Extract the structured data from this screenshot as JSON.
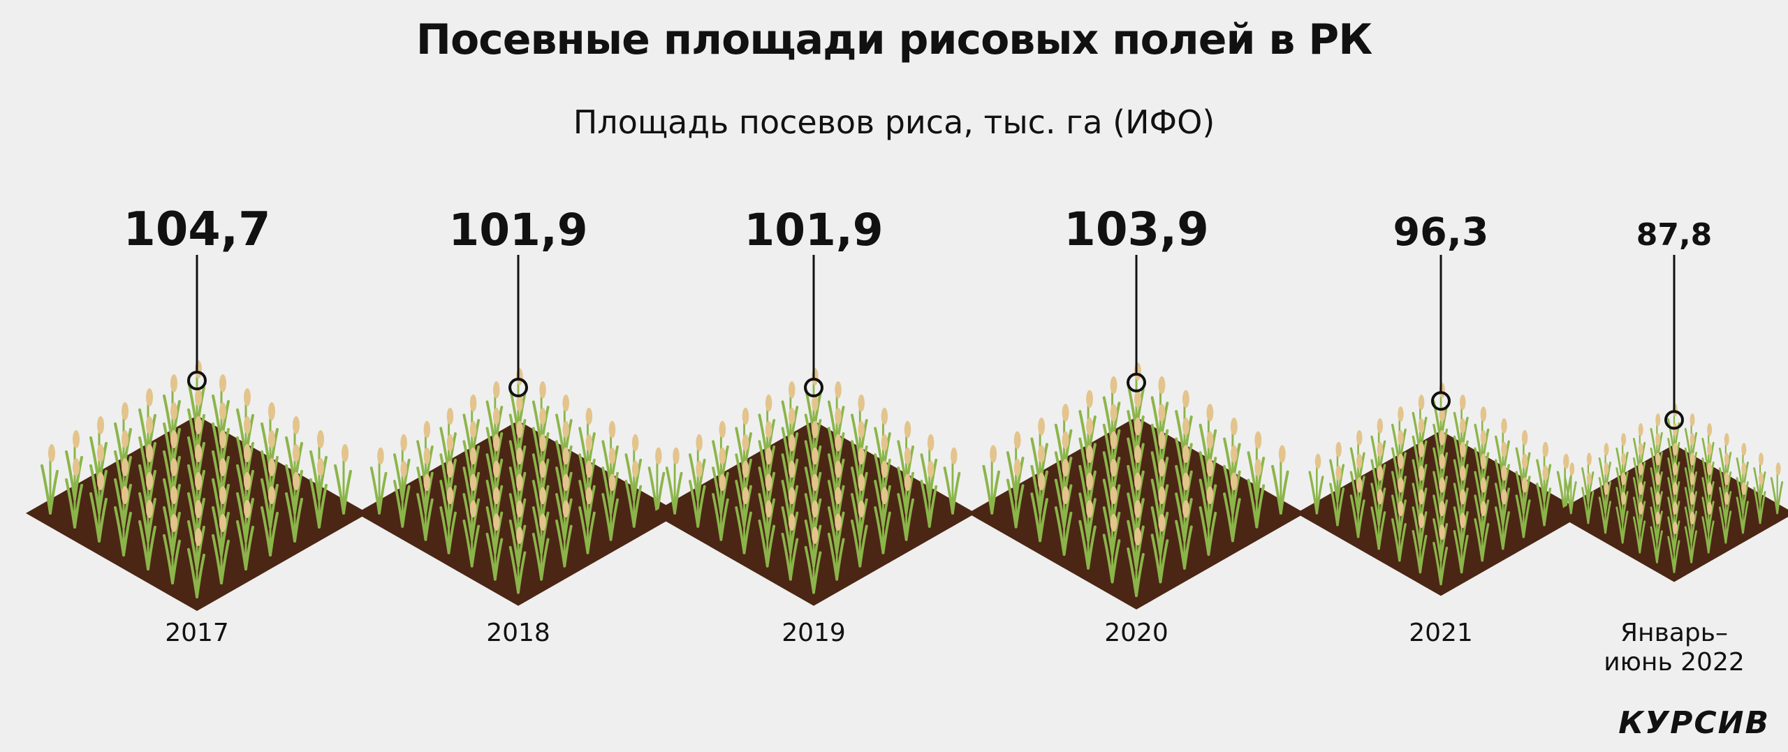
{
  "header": {
    "title": "Посевные площади рисовых полей в РК",
    "subtitle": "Площадь посевов риса, тыс. га (ИФО)"
  },
  "brand": {
    "name": "КУРСИВ"
  },
  "colors": {
    "soil": "#4b2615",
    "stalk": "#8bb54a",
    "grain": "#e3c48c",
    "line": "#111111"
  },
  "chart_data": {
    "type": "bar",
    "title": "Посевные площади рисовых полей в РК",
    "subtitle": "Площадь посевов риса, тыс. га (ИФО)",
    "categories": [
      "2017",
      "2018",
      "2019",
      "2020",
      "2021",
      "Январь–июнь 2022"
    ],
    "category_lines": [
      [
        "2017"
      ],
      [
        "2018"
      ],
      [
        "2019"
      ],
      [
        "2020"
      ],
      [
        "2021"
      ],
      [
        "Январь–",
        "июнь 2022"
      ]
    ],
    "values": [
      104.7,
      101.9,
      101.9,
      103.9,
      96.3,
      87.8
    ],
    "value_labels": [
      "104,7",
      "101,9",
      "101,9",
      "103,9",
      "96,3",
      "87,8"
    ],
    "ylabel": "тыс. га"
  }
}
